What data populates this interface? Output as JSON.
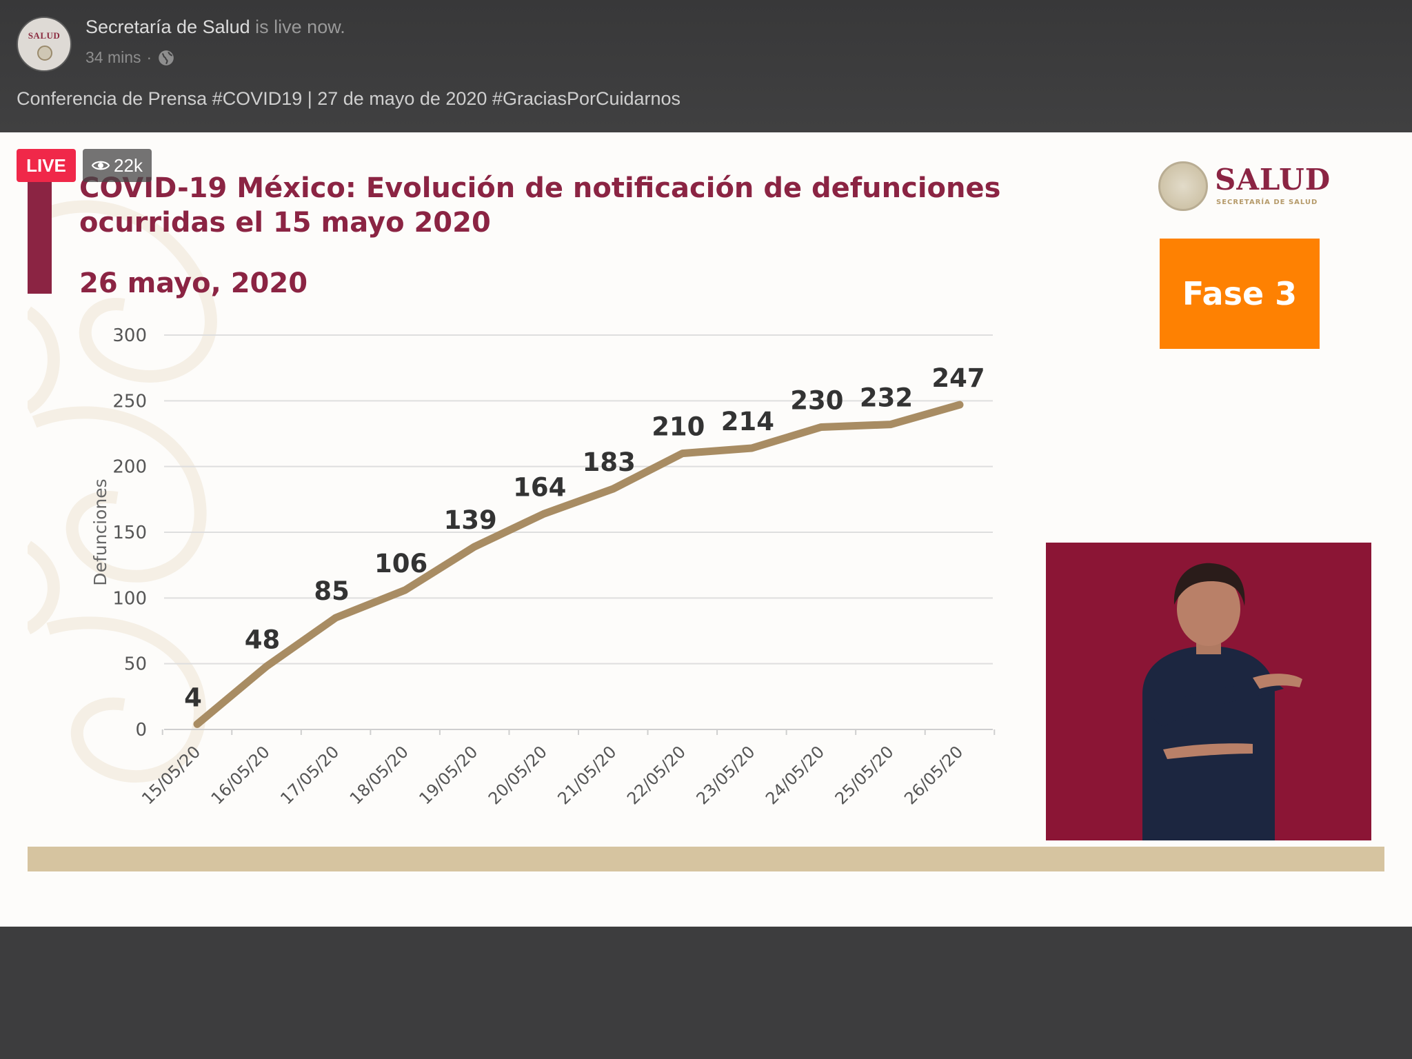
{
  "post": {
    "page_name": "Secretaría de Salud",
    "status_text": " is live now.",
    "time_ago": "34 mins",
    "separator": "·",
    "privacy_icon": "globe-icon",
    "caption": "Conferencia de Prensa #COVID19 | 27 de mayo de 2020 #GraciasPorCuidarnos",
    "avatar_text": "SALUD"
  },
  "badges": {
    "live": "LIVE",
    "viewers": "22k",
    "viewer_icon": "eye-icon"
  },
  "slide": {
    "title": "COVID-19 México: Evolución de notificación de defunciones ocurridas el 15 mayo 2020",
    "subtitle": "26 mayo, 2020",
    "logo_word": "SALUD",
    "logo_sub": "SECRETARÍA DE SALUD",
    "phase": "Fase 3",
    "colors": {
      "accent": "#8b2443",
      "line": "#a88c63",
      "phase_box": "#fe8102",
      "band": "#d6c4a0"
    }
  },
  "chart_data": {
    "type": "line",
    "ylabel": "Defunciones",
    "xlabel": "",
    "ylim": [
      0,
      300
    ],
    "yticks": [
      0,
      50,
      100,
      150,
      200,
      250,
      300
    ],
    "categories": [
      "15/05/20",
      "16/05/20",
      "17/05/20",
      "18/05/20",
      "19/05/20",
      "20/05/20",
      "21/05/20",
      "22/05/20",
      "23/05/20",
      "24/05/20",
      "25/05/20",
      "26/05/20"
    ],
    "values": [
      4,
      48,
      85,
      106,
      139,
      164,
      183,
      210,
      214,
      230,
      232,
      247
    ],
    "grid": true,
    "legend": "none",
    "color": "#a88c63"
  }
}
